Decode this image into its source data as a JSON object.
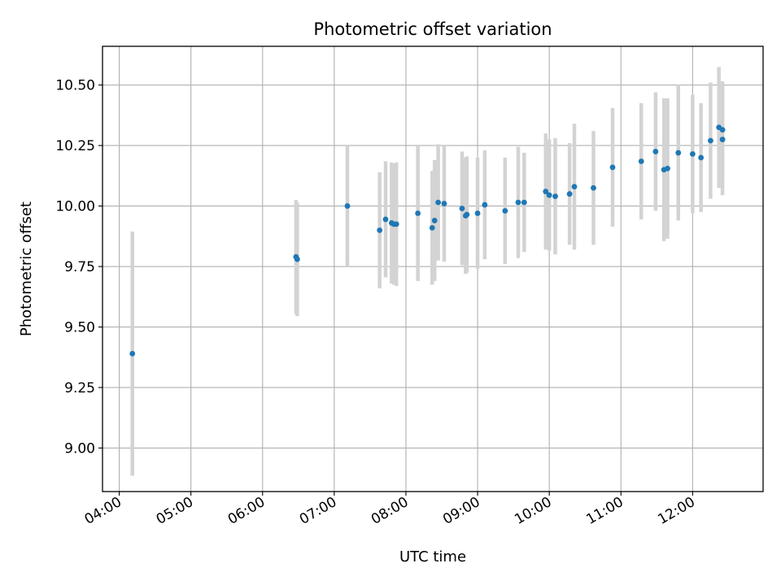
{
  "chart_data": {
    "type": "scatter",
    "title": "Photometric offset variation",
    "xlabel": "UTC time",
    "ylabel": "Photometric offset",
    "x_ticks": [
      "04:00",
      "05:00",
      "06:00",
      "07:00",
      "08:00",
      "09:00",
      "10:00",
      "11:00",
      "12:00"
    ],
    "y_ticks": [
      "9.00",
      "9.25",
      "9.50",
      "9.75",
      "10.00",
      "10.25",
      "10.50"
    ],
    "xlim": [
      "03:46",
      "12:59"
    ],
    "ylim": [
      8.82,
      10.66
    ],
    "grid": true,
    "marker_color": "#1f77b4",
    "errorbar_color": "#d3d3d3",
    "points": [
      {
        "x": "04:11",
        "y": 9.39,
        "err": 0.505
      },
      {
        "x": "06:28",
        "y": 9.79,
        "err": 0.235
      },
      {
        "x": "06:29",
        "y": 9.78,
        "err": 0.235
      },
      {
        "x": "07:11",
        "y": 10.0,
        "err": 0.25
      },
      {
        "x": "07:38",
        "y": 9.9,
        "err": 0.24
      },
      {
        "x": "07:43",
        "y": 9.945,
        "err": 0.24
      },
      {
        "x": "07:48",
        "y": 9.93,
        "err": 0.25
      },
      {
        "x": "07:50",
        "y": 9.925,
        "err": 0.25
      },
      {
        "x": "07:52",
        "y": 9.925,
        "err": 0.255
      },
      {
        "x": "08:10",
        "y": 9.97,
        "err": 0.28
      },
      {
        "x": "08:22",
        "y": 9.91,
        "err": 0.235
      },
      {
        "x": "08:24",
        "y": 9.94,
        "err": 0.25
      },
      {
        "x": "08:27",
        "y": 10.015,
        "err": 0.24
      },
      {
        "x": "08:32",
        "y": 10.01,
        "err": 0.24
      },
      {
        "x": "08:47",
        "y": 9.99,
        "err": 0.235
      },
      {
        "x": "08:50",
        "y": 9.96,
        "err": 0.24
      },
      {
        "x": "08:51",
        "y": 9.965,
        "err": 0.24
      },
      {
        "x": "09:00",
        "y": 9.97,
        "err": 0.23
      },
      {
        "x": "09:06",
        "y": 10.005,
        "err": 0.225
      },
      {
        "x": "09:23",
        "y": 9.98,
        "err": 0.22
      },
      {
        "x": "09:34",
        "y": 10.015,
        "err": 0.23
      },
      {
        "x": "09:39",
        "y": 10.015,
        "err": 0.205
      },
      {
        "x": "09:57",
        "y": 10.06,
        "err": 0.24
      },
      {
        "x": "10:00",
        "y": 10.045,
        "err": 0.23
      },
      {
        "x": "10:05",
        "y": 10.04,
        "err": 0.24
      },
      {
        "x": "10:17",
        "y": 10.05,
        "err": 0.21
      },
      {
        "x": "10:21",
        "y": 10.08,
        "err": 0.26
      },
      {
        "x": "10:37",
        "y": 10.075,
        "err": 0.235
      },
      {
        "x": "10:53",
        "y": 10.16,
        "err": 0.245
      },
      {
        "x": "11:17",
        "y": 10.185,
        "err": 0.24
      },
      {
        "x": "11:29",
        "y": 10.225,
        "err": 0.245
      },
      {
        "x": "11:36",
        "y": 10.15,
        "err": 0.295
      },
      {
        "x": "11:39",
        "y": 10.155,
        "err": 0.29
      },
      {
        "x": "11:48",
        "y": 10.22,
        "err": 0.28
      },
      {
        "x": "12:00",
        "y": 10.215,
        "err": 0.245
      },
      {
        "x": "12:07",
        "y": 10.2,
        "err": 0.225
      },
      {
        "x": "12:15",
        "y": 10.27,
        "err": 0.24
      },
      {
        "x": "12:22",
        "y": 10.325,
        "err": 0.25
      },
      {
        "x": "12:25",
        "y": 10.315,
        "err": 0.2
      },
      {
        "x": "12:25",
        "y": 10.275,
        "err": 0.23
      }
    ]
  }
}
